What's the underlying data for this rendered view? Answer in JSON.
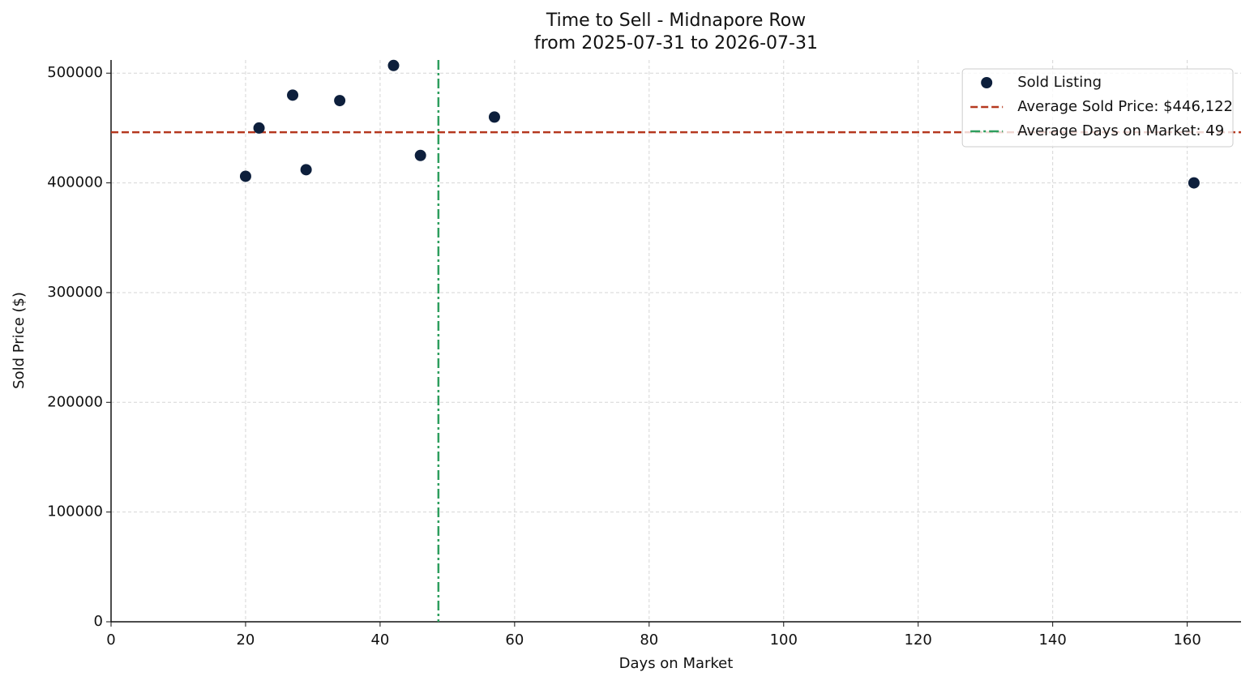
{
  "chart_data": {
    "type": "scatter",
    "title": "Time to Sell - Midnapore Row",
    "subtitle": "from 2025-07-31 to 2026-07-31",
    "x_label": "Days on Market",
    "y_label": "Sold Price ($)",
    "series": [
      {
        "name": "Sold Listing",
        "color": "#0d1f3c",
        "x": [
          20,
          22,
          27,
          29,
          34,
          42,
          46,
          57,
          161
        ],
        "values": [
          406000,
          450000,
          480000,
          412000,
          475000,
          507000,
          425000,
          460000,
          400000
        ]
      }
    ],
    "hlines": [
      {
        "name": "Average Sold Price: $446,122",
        "value": 446122,
        "color": "#b5381f",
        "style": "dashed"
      }
    ],
    "vlines": [
      {
        "name": "Average Days on Market: 49",
        "value": 48.67,
        "color": "#2e9e5e",
        "style": "dashdot"
      }
    ],
    "xlim": [
      0,
      168
    ],
    "xticks": [
      0,
      20,
      40,
      60,
      80,
      100,
      120,
      140,
      160
    ],
    "ylim": [
      0,
      512000
    ],
    "yticks": [
      0,
      100000,
      200000,
      300000,
      400000,
      500000
    ],
    "grid": true,
    "legend": "upper right"
  }
}
